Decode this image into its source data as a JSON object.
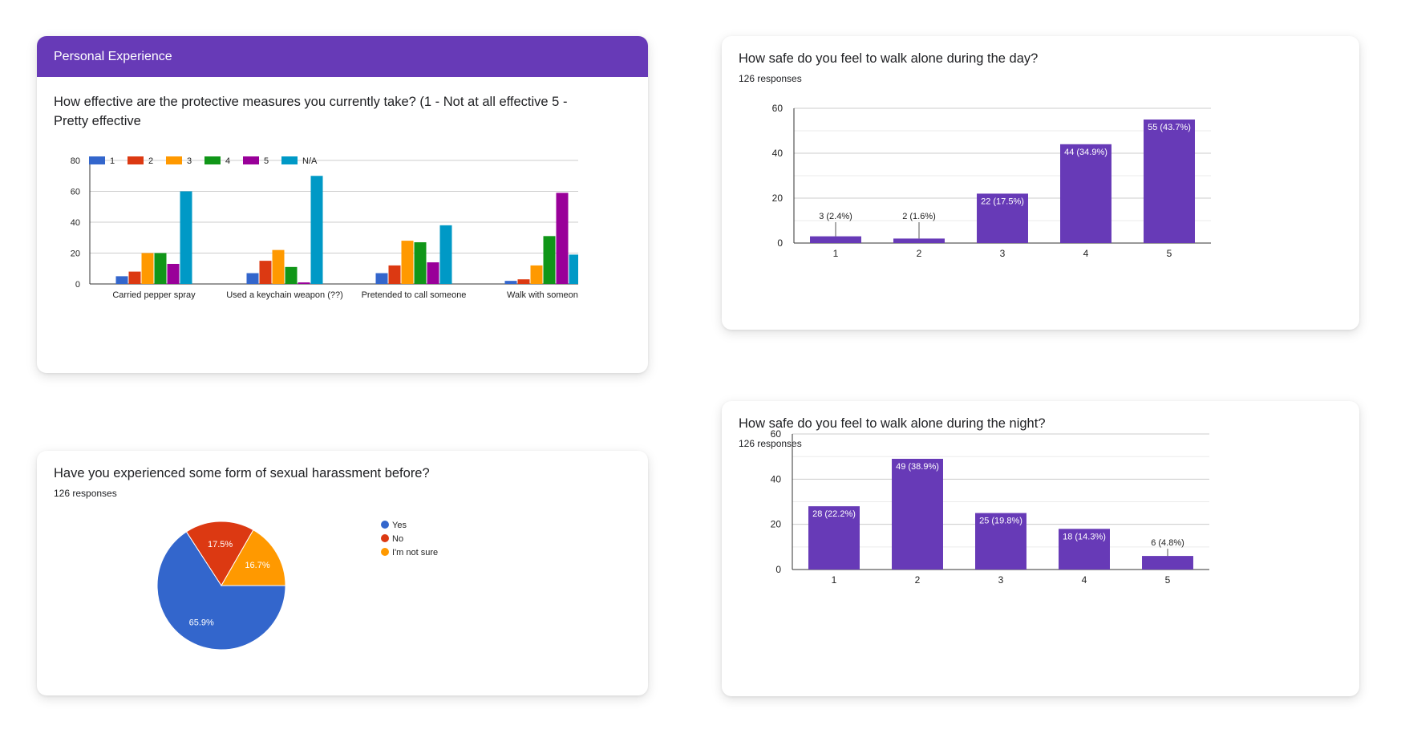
{
  "protective": {
    "section_title": "Personal Experience",
    "question": "How effective are the protective measures you currently take? (1 - Not at all effective 5 - Pretty effective"
  },
  "day": {
    "question": "How safe do you feel to walk alone during the day?",
    "responses": "126 responses"
  },
  "harassment": {
    "question": "Have you experienced some form of sexual harassment before?",
    "responses": "126 responses"
  },
  "night": {
    "question": "How safe do you feel to walk alone during the night?",
    "responses": "126 responses"
  },
  "colors": {
    "purple": "#673ab7",
    "blue": "#3366cc",
    "red": "#dc3912",
    "orange": "#ff9900",
    "green": "#109618",
    "magenta": "#990099",
    "cyan": "#0099c6"
  },
  "chart_data": [
    {
      "id": "protective",
      "type": "bar",
      "categories": [
        "Carried pepper spray",
        "Used a keychain weapon (??)",
        "Pretended to call someone",
        "Walk with someone"
      ],
      "series": [
        {
          "name": "1",
          "color": "#3366cc",
          "values": [
            5,
            7,
            7,
            2
          ]
        },
        {
          "name": "2",
          "color": "#dc3912",
          "values": [
            8,
            15,
            12,
            3
          ]
        },
        {
          "name": "3",
          "color": "#ff9900",
          "values": [
            20,
            22,
            28,
            12
          ]
        },
        {
          "name": "4",
          "color": "#109618",
          "values": [
            20,
            11,
            27,
            31
          ]
        },
        {
          "name": "5",
          "color": "#990099",
          "values": [
            13,
            1,
            14,
            59
          ]
        },
        {
          "name": "N/A",
          "color": "#0099c6",
          "values": [
            60,
            70,
            38,
            19
          ]
        }
      ],
      "yticks": [
        0,
        20,
        40,
        60,
        80
      ],
      "ylim": [
        0,
        80
      ],
      "grid": true,
      "legend": "top",
      "clipped_right": true
    },
    {
      "id": "day",
      "type": "bar",
      "categories": [
        "1",
        "2",
        "3",
        "4",
        "5"
      ],
      "values": [
        3,
        2,
        22,
        44,
        55
      ],
      "labels": [
        "3 (2.4%)",
        "2 (1.6%)",
        "22 (17.5%)",
        "44 (34.9%)",
        "55 (43.7%)"
      ],
      "yticks": [
        0,
        20,
        40,
        60
      ],
      "ylim": [
        0,
        60
      ],
      "grid": true,
      "color": "#673ab7"
    },
    {
      "id": "harassment",
      "type": "pie",
      "slices": [
        {
          "label": "Yes",
          "value": 65.9,
          "text": "65.9%",
          "color": "#3366cc"
        },
        {
          "label": "No",
          "value": 17.5,
          "text": "17.5%",
          "color": "#dc3912"
        },
        {
          "label": "I'm not sure",
          "value": 16.7,
          "text": "16.7%",
          "color": "#ff9900"
        }
      ],
      "legend": "right"
    },
    {
      "id": "night",
      "type": "bar",
      "categories": [
        "1",
        "2",
        "3",
        "4",
        "5"
      ],
      "values": [
        28,
        49,
        25,
        18,
        6
      ],
      "labels": [
        "28 (22.2%)",
        "49 (38.9%)",
        "25 (19.8%)",
        "18 (14.3%)",
        "6 (4.8%)"
      ],
      "yticks": [
        0,
        20,
        40,
        60
      ],
      "ylim": [
        0,
        60
      ],
      "grid": true,
      "color": "#673ab7"
    }
  ]
}
